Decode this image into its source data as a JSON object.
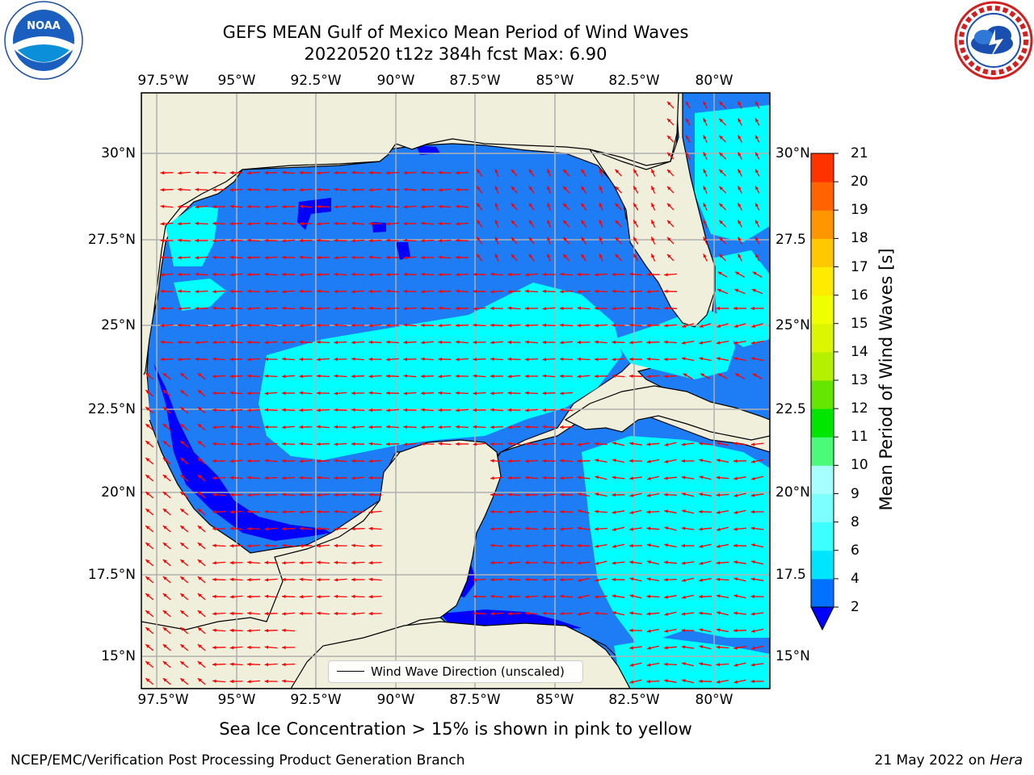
{
  "title_line1": "GEFS MEAN Gulf of Mexico Mean Period of Wind Waves",
  "title_line2": "20220520 t12z 384h fcst   Max: 6.90",
  "lon_ticks": [
    "97.5°W",
    "95°W",
    "92.5°W",
    "90°W",
    "87.5°W",
    "85°W",
    "82.5°W",
    "80°W"
  ],
  "lat_ticks_left": [
    "30°N",
    "27.5°N",
    "25°N",
    "22.5°N",
    "20°N",
    "17.5°N",
    "15°N"
  ],
  "lat_ticks_right": [
    "30°N",
    "27.5",
    "25°N",
    "22.5",
    "20°N",
    "17.5",
    "15°N"
  ],
  "colorbar": {
    "label": "Mean Period of Wind Waves [s]",
    "ticks": [
      "2",
      "4",
      "6",
      "8",
      "9",
      "10",
      "11",
      "12",
      "13",
      "14",
      "15",
      "16",
      "17",
      "18",
      "19",
      "20",
      "21"
    ],
    "colors": [
      "#0072ff",
      "#00e5ff",
      "#3dffff",
      "#7dffff",
      "#a8ffff",
      "#4cfa7a",
      "#00e600",
      "#64e600",
      "#b4f000",
      "#dcf500",
      "#f0ff00",
      "#ffeb00",
      "#ffc800",
      "#ff9600",
      "#ff6400",
      "#ff3200",
      "#ff0000"
    ],
    "extend_color": "#0000ff"
  },
  "legend": {
    "label": "Wind Wave Direction (unscaled)"
  },
  "ice_note": "Sea Ice Concentration > 15% is shown in pink to yellow",
  "footer_left": "NCEP/EMC/Verification Post Processing Product Generation Branch",
  "footer_right_date": "21 May 2022 on",
  "footer_right_host": "Hera",
  "logo_left_text": "NOAA",
  "colors": {
    "land": "#efefdc",
    "ocean_mid": "#1e7cf5",
    "ocean_low": "#0000ff",
    "ocean_high": "#00ffff",
    "arrow": "#ff0000",
    "grid": "#b0b0b0"
  }
}
